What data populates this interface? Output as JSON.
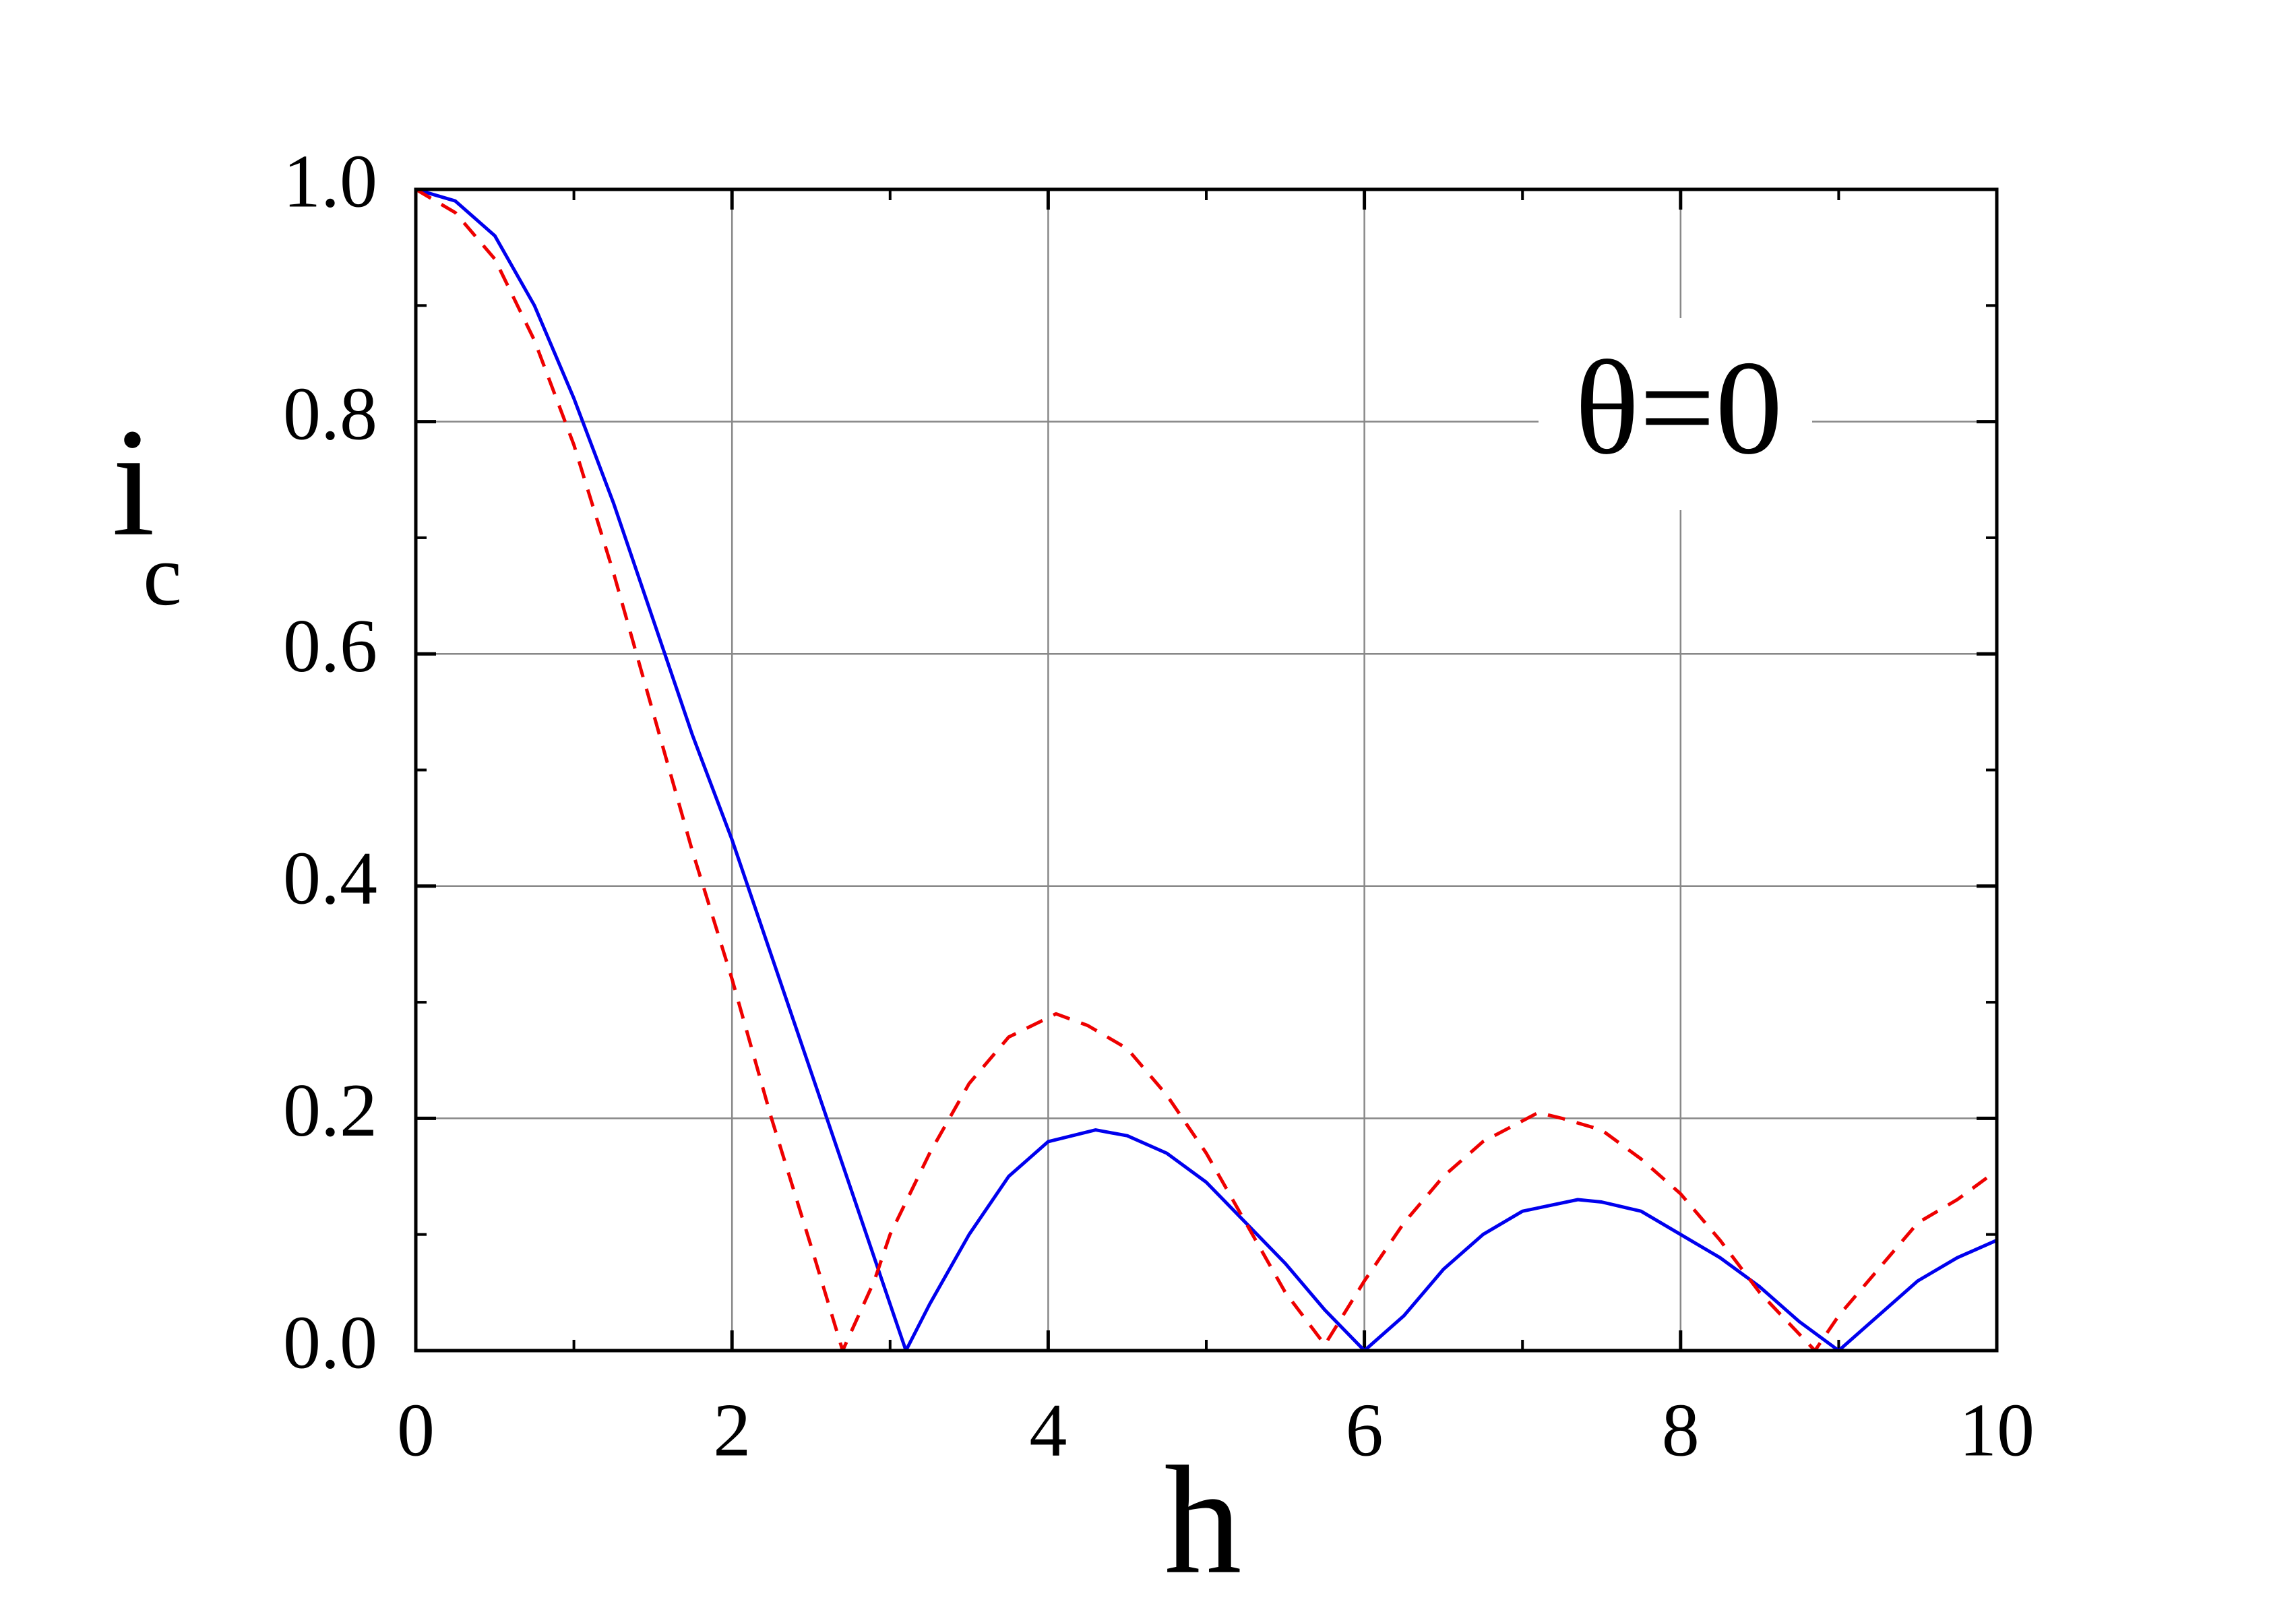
{
  "chart_data": {
    "type": "line",
    "annotation": "θ=0",
    "x_label": "h",
    "y_label": "i",
    "y_label_sub": "c",
    "xlim": [
      0,
      10
    ],
    "ylim": [
      0,
      1
    ],
    "xticks": [
      0,
      2,
      4,
      6,
      8,
      10
    ],
    "yticks": [
      {
        "value": 0,
        "label": "0.0"
      },
      {
        "value": 0.2,
        "label": "0.2"
      },
      {
        "value": 0.4,
        "label": "0.4"
      },
      {
        "value": 0.6,
        "label": "0.6"
      },
      {
        "value": 0.8,
        "label": "0.8"
      },
      {
        "value": 1,
        "label": "1.0"
      }
    ],
    "xminorticks": [
      1,
      3,
      5,
      7,
      9
    ],
    "yminorticks": [
      0.1,
      0.3,
      0.5,
      0.7,
      0.9
    ],
    "grid": true,
    "series": [
      {
        "color": "#0000ee",
        "dash": false,
        "x": [
          0,
          0.25,
          0.5,
          0.75,
          1.0,
          1.25,
          1.5,
          1.75,
          2.0,
          2.25,
          2.5,
          2.75,
          3.0,
          3.1,
          3.25,
          3.5,
          3.75,
          4.0,
          4.3,
          4.5,
          4.75,
          5.0,
          5.25,
          5.5,
          5.75,
          6.0,
          6.25,
          6.5,
          6.75,
          7.0,
          7.35,
          7.5,
          7.75,
          8.0,
          8.25,
          8.5,
          8.75,
          9.0,
          9.25,
          9.5,
          9.75,
          10
        ],
        "values": [
          1.0,
          0.99,
          0.96,
          0.9,
          0.82,
          0.73,
          0.63,
          0.53,
          0.44,
          0.34,
          0.24,
          0.14,
          0.04,
          0.0,
          0.04,
          0.1,
          0.15,
          0.18,
          0.19,
          0.185,
          0.17,
          0.145,
          0.11,
          0.075,
          0.035,
          0.0,
          0.03,
          0.07,
          0.1,
          0.12,
          0.13,
          0.128,
          0.12,
          0.1,
          0.08,
          0.055,
          0.025,
          0.0,
          0.03,
          0.06,
          0.08,
          0.095
        ]
      },
      {
        "color": "#ee0000",
        "dash": true,
        "x": [
          0,
          0.25,
          0.5,
          0.75,
          1.0,
          1.25,
          1.5,
          1.75,
          2.0,
          2.25,
          2.5,
          2.7,
          2.9,
          3.0,
          3.25,
          3.5,
          3.75,
          4.05,
          4.25,
          4.5,
          4.75,
          5.0,
          5.25,
          5.5,
          5.75,
          6.0,
          6.25,
          6.5,
          6.75,
          7.1,
          7.25,
          7.5,
          7.75,
          8.0,
          8.25,
          8.5,
          8.85,
          9.0,
          9.25,
          9.5,
          9.75,
          10
        ],
        "values": [
          1.0,
          0.98,
          0.94,
          0.87,
          0.78,
          0.67,
          0.55,
          0.43,
          0.32,
          0.2,
          0.09,
          0.0,
          0.06,
          0.1,
          0.17,
          0.23,
          0.27,
          0.29,
          0.28,
          0.26,
          0.22,
          0.17,
          0.11,
          0.05,
          0.005,
          0.06,
          0.11,
          0.15,
          0.18,
          0.205,
          0.2,
          0.19,
          0.165,
          0.135,
          0.095,
          0.05,
          0.0,
          0.03,
          0.07,
          0.11,
          0.13,
          0.155
        ]
      }
    ]
  }
}
